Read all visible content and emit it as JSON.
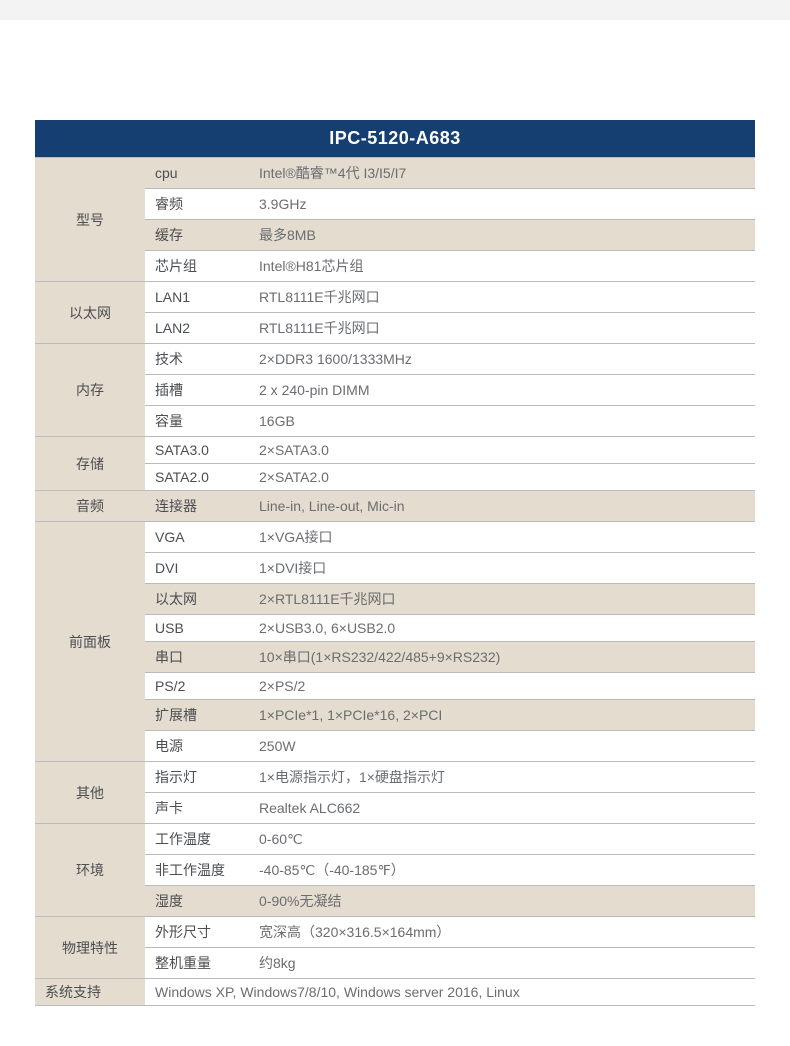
{
  "colors": {
    "header_bg": "#153f70",
    "header_fg": "#ffffff",
    "category_bg": "#e4dcce",
    "alt_row_bg": "#e4dcce",
    "border": "#b8bcc0",
    "text_primary": "#4b4e52",
    "text_value": "#6a6d71"
  },
  "title": "IPC-5120-A683",
  "model": {
    "cat": "型号",
    "cpu": {
      "label": "cpu",
      "value": "Intel®酷睿™4代 I3/I5/I7"
    },
    "freq": {
      "label": "睿频",
      "value": "3.9GHz"
    },
    "cache": {
      "label": "缓存",
      "value": "最多8MB"
    },
    "chipset": {
      "label": "芯片组",
      "value": "Intel®H81芯片组"
    }
  },
  "ethernet": {
    "cat": "以太网",
    "lan1": {
      "label": "LAN1",
      "value": "RTL8111E千兆网口"
    },
    "lan2": {
      "label": "LAN2",
      "value": "RTL8111E千兆网口"
    }
  },
  "memory": {
    "cat": "内存",
    "tech": {
      "label": "技术",
      "value": "2×DDR3 1600/1333MHz"
    },
    "slot": {
      "label": "插槽",
      "value": "2 x 240-pin DIMM"
    },
    "capacity": {
      "label": "容量",
      "value": "16GB"
    }
  },
  "storage": {
    "cat": "存储",
    "sata3": {
      "label": "SATA3.0",
      "value": "2×SATA3.0"
    },
    "sata2": {
      "label": "SATA2.0",
      "value": "2×SATA2.0"
    }
  },
  "audio": {
    "cat": "音频",
    "conn": {
      "label": "连接器",
      "value": "Line-in, Line-out, Mic-in"
    }
  },
  "front": {
    "cat": "前面板",
    "vga": {
      "label": "VGA",
      "value": "1×VGA接口"
    },
    "dvi": {
      "label": "DVI",
      "value": "1×DVI接口"
    },
    "eth": {
      "label": "以太网",
      "value": "2×RTL8111E千兆网口"
    },
    "usb": {
      "label": "USB",
      "value": "2×USB3.0, 6×USB2.0"
    },
    "serial": {
      "label": "串口",
      "value": "10×串口(1×RS232/422/485+9×RS232)"
    },
    "ps2": {
      "label": "PS/2",
      "value": "2×PS/2"
    },
    "expand": {
      "label": "扩展槽",
      "value": "1×PCIe*1, 1×PCIe*16, 2×PCI"
    },
    "power": {
      "label": "电源",
      "value": "250W"
    }
  },
  "other": {
    "cat": "其他",
    "led": {
      "label": "指示灯",
      "value": "1×电源指示灯，1×硬盘指示灯"
    },
    "sound": {
      "label": "声卡",
      "value": "Realtek ALC662"
    }
  },
  "env": {
    "cat": "环境",
    "op_temp": {
      "label": "工作温度",
      "value": "0-60℃"
    },
    "nonop_temp": {
      "label": "非工作温度",
      "value": "-40-85℃（-40-185℉）"
    },
    "humidity": {
      "label": "湿度",
      "value": "0-90%无凝结"
    }
  },
  "phys": {
    "cat": "物理特性",
    "dim": {
      "label": "外形尺寸",
      "value": "宽深高（320×316.5×164mm）"
    },
    "weight": {
      "label": "整机重量",
      "value": "约8kg"
    }
  },
  "system": {
    "cat": "系统支持",
    "value": "Windows XP, Windows7/8/10, Windows server 2016, Linux"
  }
}
